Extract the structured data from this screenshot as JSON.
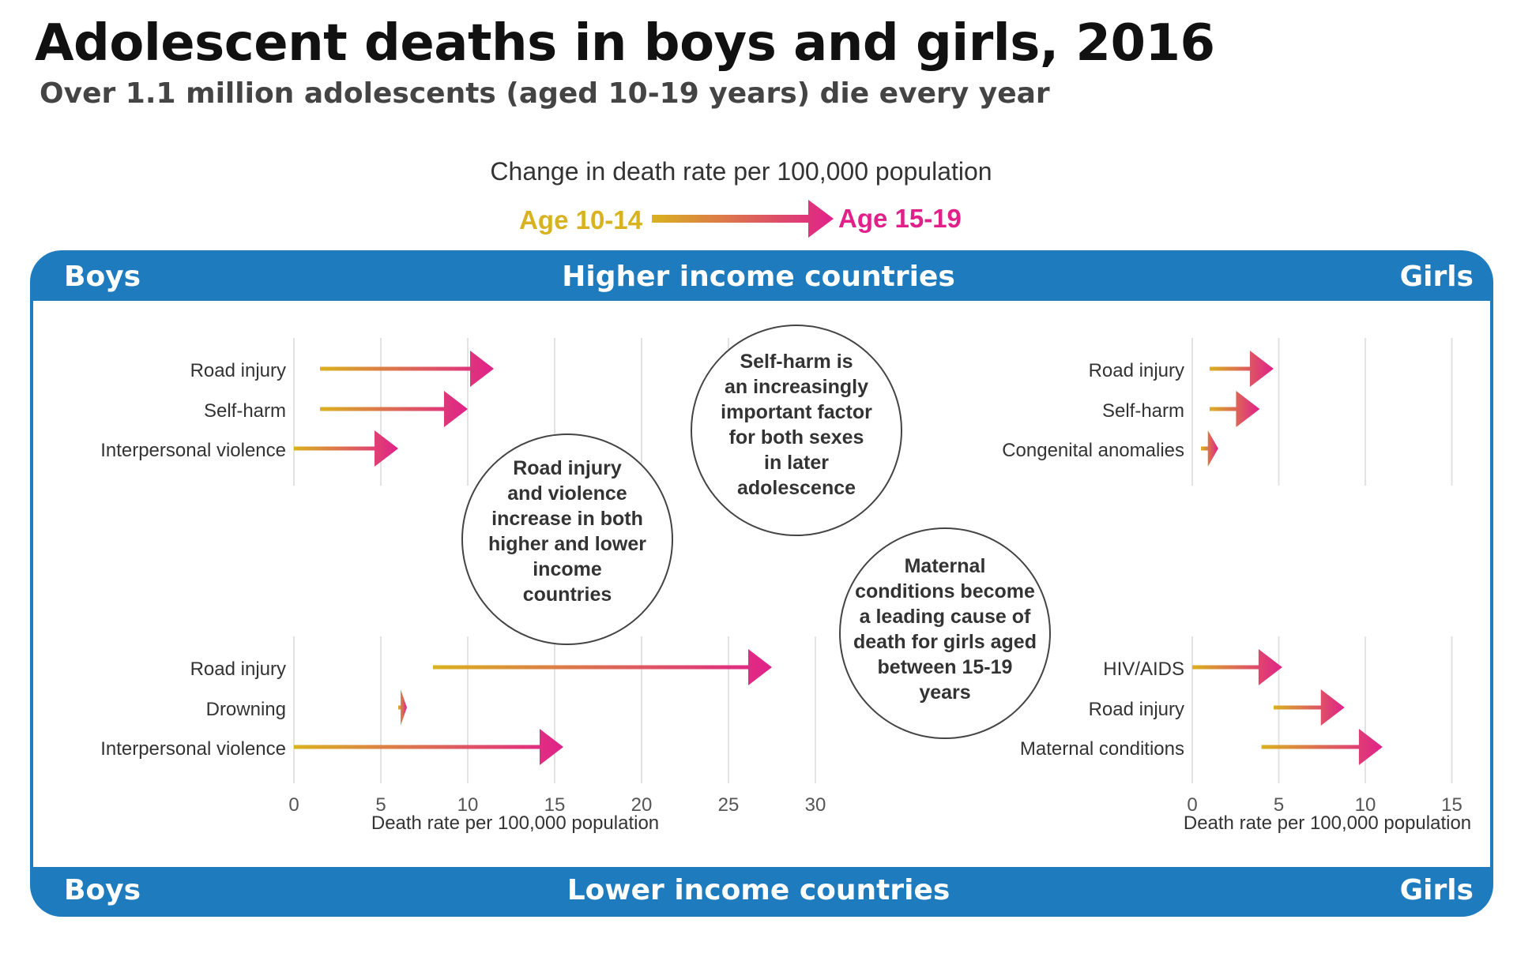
{
  "title": "Adolescent deaths in boys and girls, 2016",
  "subtitle": "Over 1.1 million adolescents (aged 10-19 years) die every year",
  "legend": {
    "heading": "Change in death rate per 100,000 population",
    "from_label": "Age 10-14",
    "to_label": "Age 15-19"
  },
  "bands": {
    "top": {
      "left": "Boys",
      "center": "Higher income countries",
      "right": "Girls"
    },
    "bottom": {
      "left": "Boys",
      "center": "Lower income countries",
      "right": "Girls"
    }
  },
  "colors": {
    "band": "#1e7bbd",
    "age_10_14": "#d9b21f",
    "age_15_19": "#e0218a",
    "gridline": "#e2e2e2",
    "text": "#333333"
  },
  "callouts": {
    "road_violence": [
      "Road injury",
      "and violence",
      "increase in both",
      "higher and lower",
      "income",
      "countries"
    ],
    "self_harm": [
      "Self-harm is",
      "an increasingly",
      "important factor",
      "for both sexes",
      "in later",
      "adolescence"
    ],
    "maternal": [
      "Maternal",
      "conditions become",
      "a leading cause of",
      "death for girls aged",
      "between 15-19",
      "years"
    ]
  },
  "chart_data": [
    {
      "type": "arrow",
      "name": "Boys, Higher income countries",
      "categories": [
        "Road injury",
        "Self-harm",
        "Interpersonal violence"
      ],
      "from": [
        1.5,
        1.5,
        0
      ],
      "to": [
        11.5,
        10,
        6
      ],
      "xlim": [
        0,
        30
      ]
    },
    {
      "type": "arrow",
      "name": "Boys, Lower income countries",
      "categories": [
        "Road injury",
        "Drowning",
        "Interpersonal violence"
      ],
      "from": [
        8,
        6,
        0
      ],
      "to": [
        27.5,
        6.5,
        15.5
      ],
      "xlim": [
        0,
        30
      ],
      "xticks": [
        0,
        5,
        10,
        15,
        20,
        25,
        30
      ],
      "xlabel": "Death rate per 100,000 population"
    },
    {
      "type": "arrow",
      "name": "Girls, Higher income countries",
      "categories": [
        "Road injury",
        "Self-harm",
        "Congenital anomalies"
      ],
      "from": [
        1,
        1,
        0.5
      ],
      "to": [
        4.7,
        3.9,
        1.5
      ],
      "xlim": [
        0,
        15
      ]
    },
    {
      "type": "arrow",
      "name": "Girls, Lower income countries",
      "categories": [
        "HIV/AIDS",
        "Road injury",
        "Maternal conditions"
      ],
      "from": [
        0,
        4.7,
        4
      ],
      "to": [
        5.2,
        8.8,
        11
      ],
      "xlim": [
        0,
        15
      ],
      "xticks": [
        0,
        5,
        10,
        15
      ],
      "xlabel": "Death rate per 100,000 population"
    }
  ]
}
